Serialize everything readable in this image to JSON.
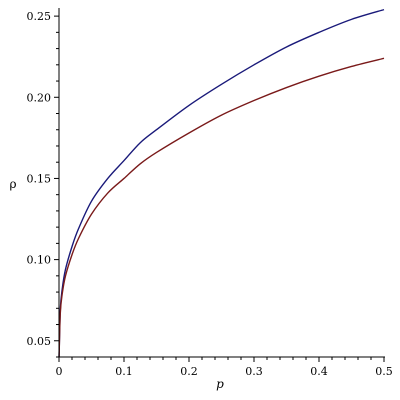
{
  "chart_data": {
    "type": "line",
    "title": "",
    "xlabel": "p",
    "ylabel": "ρ",
    "xlim": [
      0,
      0.5
    ],
    "ylim": [
      0.04,
      0.255
    ],
    "x_ticks": [
      0,
      0.1,
      0.2,
      0.3,
      0.4,
      0.5
    ],
    "x_tick_labels": [
      "0",
      "0.1",
      "0.2",
      "0.3",
      "0.4",
      "0.5"
    ],
    "y_ticks": [
      0.05,
      0.1,
      0.15,
      0.2,
      0.25
    ],
    "y_tick_labels": [
      "0.05",
      "0.10",
      "0.15",
      "0.20",
      "0.25"
    ],
    "grid": false,
    "series": [
      {
        "color": "#1a1a7a",
        "x": [
          0.0001,
          0.002,
          0.005,
          0.01,
          0.02,
          0.03,
          0.05,
          0.075,
          0.1,
          0.125,
          0.15,
          0.2,
          0.25,
          0.3,
          0.35,
          0.4,
          0.45,
          0.5
        ],
        "y": [
          0.04,
          0.069,
          0.082,
          0.094,
          0.108,
          0.119,
          0.136,
          0.15,
          0.161,
          0.172,
          0.18,
          0.195,
          0.208,
          0.22,
          0.231,
          0.24,
          0.248,
          0.254
        ]
      },
      {
        "color": "#7a1a1a",
        "x": [
          0.0001,
          0.002,
          0.005,
          0.01,
          0.02,
          0.03,
          0.05,
          0.075,
          0.1,
          0.125,
          0.15,
          0.2,
          0.25,
          0.3,
          0.35,
          0.4,
          0.45,
          0.5
        ],
        "y": [
          0.04,
          0.067,
          0.079,
          0.09,
          0.103,
          0.113,
          0.128,
          0.141,
          0.15,
          0.159,
          0.166,
          0.178,
          0.189,
          0.198,
          0.206,
          0.213,
          0.219,
          0.224
        ]
      }
    ]
  }
}
